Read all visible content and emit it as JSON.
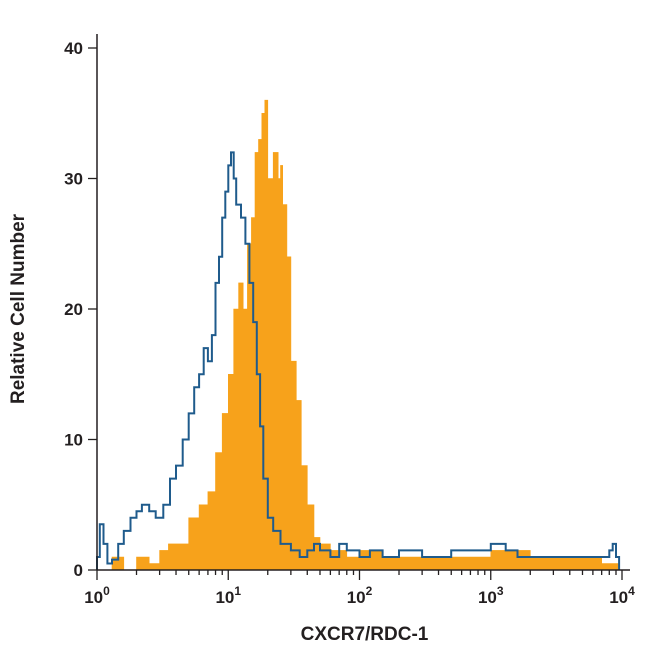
{
  "chart_data": {
    "type": "histogram",
    "title": "",
    "xlabel": "CXCR7/RDC-1",
    "ylabel": "Relative Cell Number",
    "x_scale": "log",
    "xlim": [
      1,
      10000
    ],
    "ylim": [
      0,
      40
    ],
    "grid": false,
    "legend": "none",
    "x_ticks": [
      {
        "base": "10",
        "exp": "0",
        "value": 1
      },
      {
        "base": "10",
        "exp": "1",
        "value": 10
      },
      {
        "base": "10",
        "exp": "2",
        "value": 100
      },
      {
        "base": "10",
        "exp": "3",
        "value": 1000
      },
      {
        "base": "10",
        "exp": "4",
        "value": 10000
      }
    ],
    "y_ticks": [
      {
        "label": "0",
        "value": 0
      },
      {
        "label": "10",
        "value": 10
      },
      {
        "label": "20",
        "value": 20
      },
      {
        "label": "30",
        "value": 30
      },
      {
        "label": "40",
        "value": 40
      }
    ],
    "series": [
      {
        "style": "filled",
        "color": "#f7a21b",
        "points": [
          [
            1,
            0
          ],
          [
            1.3,
            1
          ],
          [
            1.6,
            0
          ],
          [
            2,
            1
          ],
          [
            2.5,
            0.5
          ],
          [
            3,
            1.5
          ],
          [
            3.5,
            2
          ],
          [
            4,
            2
          ],
          [
            5,
            4
          ],
          [
            6,
            5
          ],
          [
            7,
            6
          ],
          [
            8,
            9
          ],
          [
            9,
            12
          ],
          [
            10,
            15
          ],
          [
            11,
            20
          ],
          [
            12,
            22
          ],
          [
            13,
            20
          ],
          [
            14,
            25
          ],
          [
            15,
            27
          ],
          [
            16,
            32
          ],
          [
            17,
            33
          ],
          [
            18,
            35
          ],
          [
            19,
            36
          ],
          [
            20,
            30
          ],
          [
            22,
            32
          ],
          [
            24,
            30
          ],
          [
            25,
            31
          ],
          [
            26,
            28
          ],
          [
            28,
            24
          ],
          [
            30,
            16
          ],
          [
            33,
            13
          ],
          [
            36,
            8
          ],
          [
            40,
            5
          ],
          [
            45,
            2.5
          ],
          [
            50,
            2
          ],
          [
            60,
            1.5
          ],
          [
            80,
            1
          ],
          [
            100,
            1.5
          ],
          [
            150,
            1
          ],
          [
            200,
            1
          ],
          [
            300,
            1
          ],
          [
            500,
            1
          ],
          [
            1000,
            1.5
          ],
          [
            2000,
            1
          ],
          [
            4000,
            1
          ],
          [
            7000,
            0.5
          ],
          [
            9000,
            0.5
          ],
          [
            9500,
            0
          ]
        ]
      },
      {
        "style": "outline",
        "color": "#1f5b8c",
        "points": [
          [
            1,
            1
          ],
          [
            1.05,
            3.5
          ],
          [
            1.12,
            2
          ],
          [
            1.2,
            0.5
          ],
          [
            1.3,
            0.8
          ],
          [
            1.45,
            2
          ],
          [
            1.6,
            3
          ],
          [
            1.8,
            4
          ],
          [
            2,
            4.5
          ],
          [
            2.2,
            5
          ],
          [
            2.5,
            4.5
          ],
          [
            2.8,
            4
          ],
          [
            3.2,
            5
          ],
          [
            3.6,
            7
          ],
          [
            4,
            8
          ],
          [
            4.5,
            10
          ],
          [
            5,
            12
          ],
          [
            5.5,
            14
          ],
          [
            6,
            15
          ],
          [
            6.5,
            17
          ],
          [
            7,
            16
          ],
          [
            7.5,
            18
          ],
          [
            8,
            22
          ],
          [
            8.5,
            24
          ],
          [
            9,
            27
          ],
          [
            9.5,
            29
          ],
          [
            10,
            31
          ],
          [
            10.5,
            32
          ],
          [
            11,
            30
          ],
          [
            11.5,
            28
          ],
          [
            12.5,
            27
          ],
          [
            13.5,
            25
          ],
          [
            14.5,
            22
          ],
          [
            15.5,
            19
          ],
          [
            16.5,
            15
          ],
          [
            17.5,
            11
          ],
          [
            18.5,
            7
          ],
          [
            20,
            4
          ],
          [
            22,
            3
          ],
          [
            25,
            2
          ],
          [
            30,
            1.5
          ],
          [
            35,
            1
          ],
          [
            40,
            1.5
          ],
          [
            45,
            2
          ],
          [
            50,
            1.5
          ],
          [
            60,
            1
          ],
          [
            70,
            2
          ],
          [
            80,
            1.5
          ],
          [
            100,
            1
          ],
          [
            120,
            1.5
          ],
          [
            150,
            1
          ],
          [
            200,
            1.5
          ],
          [
            300,
            1
          ],
          [
            500,
            1.5
          ],
          [
            1000,
            2
          ],
          [
            1300,
            1.5
          ],
          [
            1600,
            1
          ],
          [
            2500,
            1
          ],
          [
            5000,
            1
          ],
          [
            8000,
            1.5
          ],
          [
            8500,
            2
          ],
          [
            9000,
            1
          ],
          [
            9500,
            0
          ]
        ]
      }
    ]
  }
}
